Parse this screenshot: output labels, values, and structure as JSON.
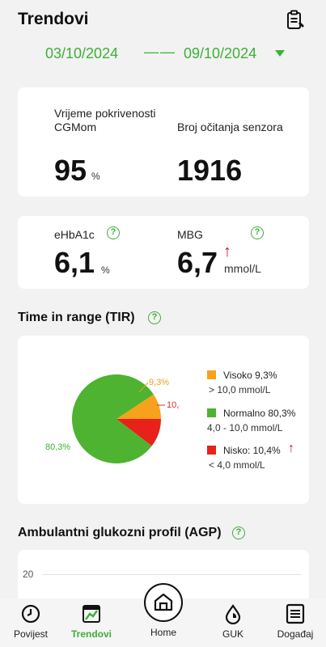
{
  "header": {
    "title": "Trendovi",
    "date_from": "03/10/2024",
    "date_separator": "——",
    "date_to": "09/10/2024"
  },
  "coverage": {
    "cgm_label": "Vrijeme pokrivenosti CGMom",
    "cgm_value": "95",
    "cgm_unit": "%",
    "readings_label": "Broj očitanja senzora",
    "readings_value": "1916"
  },
  "metrics": {
    "ehba1c_label": "eHbA1c",
    "ehba1c_value": "6,1",
    "ehba1c_unit": "%",
    "mbg_label": "MBG",
    "mbg_value": "6,7",
    "mbg_unit": "mmol/L",
    "mbg_trend": "↑"
  },
  "tir": {
    "section_title": "Time in range (TIR)",
    "legend": [
      {
        "label": "Visoko 9,3%",
        "range": "> 10,0 mmol/L",
        "color": "#f7a21b"
      },
      {
        "label": "Normalno 80,3%",
        "range": "4,0 - 10,0 mmol/L",
        "color": "#4db330"
      },
      {
        "label": "Nisko: 10,4%",
        "range": "< 4,0 mmol/L",
        "color": "#e8211b",
        "trend": "↑"
      }
    ]
  },
  "chart_data": {
    "type": "pie",
    "slices": [
      {
        "name": "Visoko",
        "value": 9.3,
        "label": "9,3%",
        "color": "#f7a21b"
      },
      {
        "name": "Nisko",
        "value": 10.4,
        "label": "10,4%",
        "color": "#e8211b"
      },
      {
        "name": "Normalno",
        "value": 80.3,
        "label": "80,3%",
        "color": "#4db330"
      }
    ]
  },
  "agp": {
    "section_title": "Ambulantni glukozni profil (AGP)",
    "y_tick": "20"
  },
  "nav": {
    "items": [
      {
        "label": "Povijest"
      },
      {
        "label": "Trendovi"
      },
      {
        "label": "Home"
      },
      {
        "label": "GUK"
      },
      {
        "label": "Događaj"
      }
    ]
  },
  "colors": {
    "accent": "#3cb034",
    "alert": "#c8102e"
  }
}
